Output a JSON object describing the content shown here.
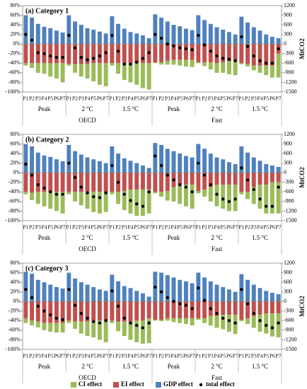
{
  "chart_data": [
    {
      "type": "bar",
      "title": "(a) Category 1",
      "categories": [
        "P1",
        "P2",
        "P3",
        "P4",
        "P5",
        "P6",
        "P7",
        "P1",
        "P2",
        "P3",
        "P4",
        "P5",
        "P6",
        "P7",
        "P1",
        "P2",
        "P3",
        "P4",
        "P5",
        "P6",
        "P7",
        "P1",
        "P2",
        "P3",
        "P4",
        "P5",
        "P6",
        "P7",
        "P1",
        "P2",
        "P3",
        "P4",
        "P5",
        "P6",
        "P7",
        "P1",
        "P2",
        "P3",
        "P4",
        "P5",
        "P6",
        "P7"
      ],
      "scenarios": [
        "Peak",
        "2 °C",
        "1.5 °C",
        "Peak",
        "2 °C",
        "1.5 °C"
      ],
      "groups": [
        "OECD",
        "Fast"
      ],
      "series": [
        {
          "name": "CI effect",
          "color": "#9bbb59",
          "mark": "bar",
          "values": [
            -5,
            -10,
            -20,
            -22,
            -28,
            -32,
            -40,
            -3,
            -18,
            -26,
            -30,
            -38,
            -45,
            -48,
            -5,
            -22,
            -35,
            -40,
            -45,
            -52,
            -55,
            -2,
            -5,
            -8,
            -10,
            -12,
            -14,
            -15,
            -2,
            -8,
            -15,
            -20,
            -22,
            -27,
            -30,
            -2,
            -5,
            -10,
            -15,
            -20,
            -25,
            -50
          ]
        },
        {
          "name": "EI effect",
          "color": "#c0504d",
          "mark": "bar",
          "values": [
            -40,
            -40,
            -40,
            -40,
            -40,
            -40,
            -40,
            -42,
            -42,
            -42,
            -42,
            -40,
            -40,
            -40,
            -40,
            -40,
            -40,
            -40,
            -40,
            -40,
            -40,
            -38,
            -38,
            -35,
            -33,
            -33,
            -33,
            -33,
            -38,
            -38,
            -38,
            -40,
            -38,
            -36,
            -35,
            -40,
            -42,
            -45,
            -45,
            -45,
            -45,
            -20
          ]
        },
        {
          "name": "GDP effect",
          "color": "#4f81bd",
          "mark": "bar",
          "values": [
            60,
            55,
            42,
            36,
            33,
            28,
            24,
            60,
            47,
            40,
            33,
            30,
            26,
            22,
            58,
            42,
            32,
            25,
            22,
            18,
            12,
            62,
            55,
            47,
            40,
            37,
            32,
            29,
            60,
            50,
            42,
            35,
            30,
            25,
            20,
            57,
            45,
            35,
            28,
            20,
            15,
            12
          ]
        },
        {
          "name": "total effect",
          "color": "#000000",
          "mark": "dot",
          "values": [
            20,
            8,
            -18,
            -20,
            -25,
            -28,
            -28,
            18,
            -8,
            -28,
            -33,
            -30,
            -25,
            -18,
            18,
            -15,
            -42,
            -42,
            -38,
            -30,
            -18,
            20,
            12,
            0,
            -4,
            -8,
            -10,
            -12,
            18,
            -2,
            -15,
            -25,
            -30,
            -32,
            -35,
            15,
            -5,
            -25,
            -35,
            -40,
            -40,
            -10
          ]
        }
      ],
      "ylim": [
        -100,
        80
      ],
      "yticks": [
        {
          "value": -100,
          "label": "-100%"
        },
        {
          "value": -80,
          "label": "-80%"
        },
        {
          "value": -60,
          "label": "-60%"
        },
        {
          "value": -40,
          "label": "-40%"
        },
        {
          "value": -20,
          "label": "-20%"
        },
        {
          "value": 0,
          "label": "0%"
        },
        {
          "value": 20,
          "label": "20%"
        },
        {
          "value": 40,
          "label": "40%"
        },
        {
          "value": 60,
          "label": "60%"
        },
        {
          "value": 80,
          "label": "80%"
        }
      ],
      "y2label": "MtCO2",
      "y2lim": [
        -1500,
        1200
      ],
      "y2ticks": [
        -1500,
        -1200,
        -900,
        -600,
        -300,
        0,
        300,
        600,
        900,
        1200
      ]
    },
    {
      "type": "bar",
      "title": "(b) Category 2",
      "categories": [
        "P1",
        "P2",
        "P3",
        "P4",
        "P5",
        "P6",
        "P7",
        "P1",
        "P2",
        "P3",
        "P4",
        "P5",
        "P6",
        "P7",
        "P1",
        "P2",
        "P3",
        "P4",
        "P5",
        "P6",
        "P7",
        "P1",
        "P2",
        "P3",
        "P4",
        "P5",
        "P6",
        "P7",
        "P1",
        "P2",
        "P3",
        "P4",
        "P5",
        "P6",
        "P7",
        "P1",
        "P2",
        "P3",
        "P4",
        "P5",
        "P6",
        "P7"
      ],
      "scenarios": [
        "Peak",
        "2 °C",
        "1.5 °C",
        "Peak",
        "2 °C",
        "1.5 °C"
      ],
      "groups": [
        "OECD",
        "Fast"
      ],
      "series": [
        {
          "name": "CI effect",
          "color": "#9bbb59",
          "mark": "bar",
          "values": [
            -5,
            -15,
            -25,
            -30,
            -35,
            -40,
            -45,
            -5,
            -20,
            -28,
            -35,
            -42,
            -45,
            -42,
            -5,
            -25,
            -40,
            -50,
            -55,
            -55,
            -50,
            -3,
            -10,
            -20,
            -30,
            -40,
            -45,
            -50,
            -5,
            -15,
            -30,
            -45,
            -50,
            -55,
            -55,
            -5,
            -15,
            -35,
            -50,
            -60,
            -65,
            -65
          ]
        },
        {
          "name": "EI effect",
          "color": "#c0504d",
          "mark": "bar",
          "values": [
            -40,
            -42,
            -40,
            -40,
            -40,
            -40,
            -40,
            -40,
            -40,
            -40,
            -40,
            -40,
            -40,
            -40,
            -40,
            -40,
            -38,
            -35,
            -35,
            -35,
            -35,
            -40,
            -40,
            -38,
            -30,
            -25,
            -25,
            -25,
            -38,
            -35,
            -30,
            -25,
            -25,
            -25,
            -25,
            -40,
            -40,
            -30,
            -25,
            -25,
            -20,
            -20
          ]
        },
        {
          "name": "GDP effect",
          "color": "#4f81bd",
          "mark": "bar",
          "values": [
            60,
            55,
            42,
            36,
            33,
            28,
            24,
            58,
            45,
            38,
            32,
            28,
            24,
            20,
            55,
            40,
            30,
            25,
            20,
            15,
            10,
            62,
            58,
            50,
            45,
            40,
            35,
            32,
            60,
            50,
            40,
            32,
            28,
            22,
            18,
            55,
            42,
            32,
            25,
            18,
            15,
            12
          ]
        },
        {
          "name": "total effect",
          "color": "#000000",
          "mark": "dot",
          "values": [
            18,
            -5,
            -25,
            -32,
            -40,
            -45,
            -45,
            20,
            -10,
            -30,
            -42,
            -50,
            -52,
            -42,
            15,
            -20,
            -45,
            -58,
            -65,
            -70,
            -40,
            35,
            15,
            -5,
            -15,
            -25,
            -30,
            -40,
            20,
            -5,
            -25,
            -45,
            -55,
            -60,
            -55,
            10,
            -15,
            -35,
            -55,
            -70,
            -70,
            -30
          ]
        }
      ],
      "ylim": [
        -100,
        80
      ],
      "yticks": [
        {
          "value": -100,
          "label": "-100%"
        },
        {
          "value": -80,
          "label": "-80%"
        },
        {
          "value": -60,
          "label": "-60%"
        },
        {
          "value": -40,
          "label": "-40%"
        },
        {
          "value": -20,
          "label": "-20%"
        },
        {
          "value": 0,
          "label": "0%"
        },
        {
          "value": 20,
          "label": "20%"
        },
        {
          "value": 40,
          "label": "40%"
        },
        {
          "value": 60,
          "label": "60%"
        },
        {
          "value": 80,
          "label": "80%"
        }
      ],
      "y2label": "MtCO2",
      "y2lim": [
        -1500,
        1200
      ],
      "y2ticks": [
        -1500,
        -1200,
        -900,
        -600,
        -300,
        0,
        300,
        600,
        900,
        1200
      ]
    },
    {
      "type": "bar",
      "title": "(c) Category 3",
      "categories": [
        "P1",
        "P2",
        "P3",
        "P4",
        "P5",
        "P6",
        "P7",
        "P1",
        "P2",
        "P3",
        "P4",
        "P5",
        "P6",
        "P7",
        "P1",
        "P2",
        "P3",
        "P4",
        "P5",
        "P6",
        "P7",
        "P1",
        "P2",
        "P3",
        "P4",
        "P5",
        "P6",
        "P7",
        "P1",
        "P2",
        "P3",
        "P4",
        "P5",
        "P6",
        "P7",
        "P1",
        "P2",
        "P3",
        "P4",
        "P5",
        "P6",
        "P7"
      ],
      "scenarios": [
        "Peak",
        "2 °C",
        "1.5 °C",
        "Peak",
        "2 °C",
        "1.5 °C"
      ],
      "groups": [
        "OECD",
        "Fast"
      ],
      "series": [
        {
          "name": "CI effect",
          "color": "#9bbb59",
          "mark": "bar",
          "values": [
            -10,
            -10,
            -12,
            -15,
            -18,
            -20,
            -20,
            -5,
            -15,
            -25,
            -30,
            -35,
            -40,
            -45,
            -5,
            -20,
            -30,
            -38,
            -45,
            -48,
            -52,
            -2,
            -3,
            -5,
            -8,
            -10,
            -12,
            -15,
            -3,
            -10,
            -20,
            -25,
            -30,
            -35,
            -40,
            -3,
            -12,
            -25,
            -35,
            -42,
            -48,
            -50
          ]
        },
        {
          "name": "EI effect",
          "color": "#c0504d",
          "mark": "bar",
          "values": [
            -35,
            -40,
            -42,
            -45,
            -45,
            -45,
            -45,
            -40,
            -42,
            -42,
            -42,
            -40,
            -40,
            -40,
            -40,
            -42,
            -42,
            -42,
            -40,
            -40,
            -35,
            -38,
            -38,
            -35,
            -35,
            -35,
            -35,
            -35,
            -35,
            -35,
            -30,
            -30,
            -28,
            -28,
            -28,
            -38,
            -35,
            -30,
            -28,
            -25,
            -25,
            -25
          ]
        },
        {
          "name": "GDP effect",
          "color": "#4f81bd",
          "mark": "bar",
          "values": [
            62,
            58,
            45,
            40,
            35,
            30,
            27,
            60,
            48,
            40,
            35,
            30,
            25,
            22,
            56,
            42,
            32,
            28,
            22,
            17,
            10,
            62,
            60,
            55,
            50,
            45,
            42,
            38,
            60,
            50,
            42,
            35,
            30,
            25,
            20,
            57,
            45,
            35,
            28,
            22,
            18,
            15
          ]
        },
        {
          "name": "total effect",
          "color": "#000000",
          "mark": "dot",
          "values": [
            25,
            8,
            -10,
            -20,
            -28,
            -35,
            -38,
            25,
            -8,
            -25,
            -35,
            -42,
            -45,
            -40,
            22,
            -10,
            -35,
            -45,
            -50,
            -55,
            -45,
            30,
            20,
            8,
            0,
            -5,
            -8,
            -15,
            28,
            2,
            -15,
            -25,
            -35,
            -40,
            -45,
            25,
            -5,
            -25,
            -40,
            -50,
            -55,
            -45
          ]
        }
      ],
      "ylim": [
        -100,
        80
      ],
      "yticks": [
        {
          "value": -100,
          "label": "-100%"
        },
        {
          "value": -80,
          "label": "-80%"
        },
        {
          "value": -60,
          "label": "-60%"
        },
        {
          "value": -40,
          "label": "-40%"
        },
        {
          "value": -20,
          "label": "-20%"
        },
        {
          "value": 0,
          "label": "0%"
        },
        {
          "value": 20,
          "label": "20%"
        },
        {
          "value": 40,
          "label": "40%"
        },
        {
          "value": 60,
          "label": "60%"
        },
        {
          "value": 80,
          "label": "80%"
        }
      ],
      "y2label": "MtCO2",
      "y2lim": [
        -1500,
        1200
      ],
      "y2ticks": [
        -1500,
        -1200,
        -900,
        -600,
        -300,
        0,
        300,
        600,
        900,
        1200
      ]
    }
  ]
}
